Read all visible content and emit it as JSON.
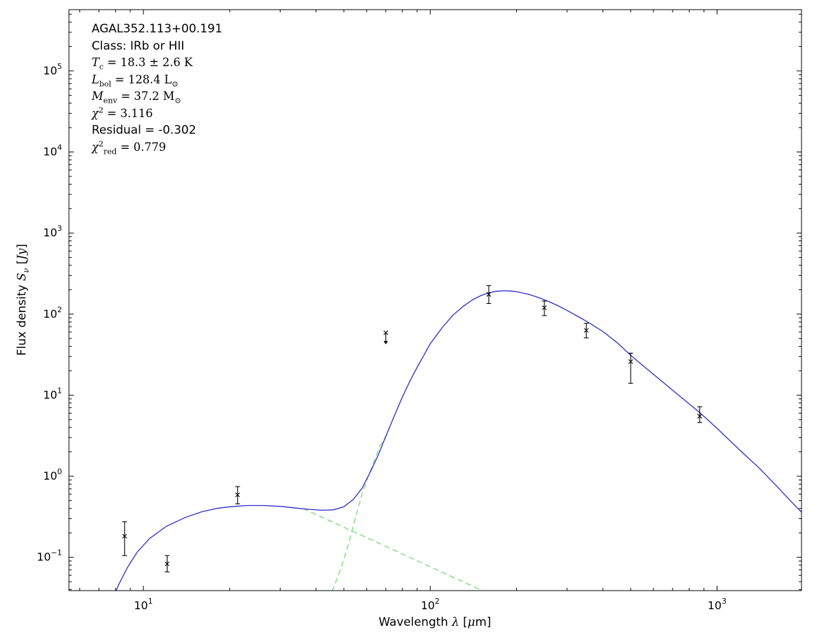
{
  "chart_data": {
    "type": "line",
    "title": "AGAL352.113+00.191",
    "xscale": "log",
    "yscale": "log",
    "xlim": [
      5.5,
      1970
    ],
    "ylim": [
      0.0388,
      570000
    ],
    "grid": false,
    "legend": "none",
    "xlabel": "Wavelength λ [μm]",
    "ylabel": "Flux density S_ν [Jy]",
    "xlabel_segments": [
      {
        "t": "Wavelength "
      },
      {
        "t": "λ",
        "it": true
      },
      {
        "t": " ["
      },
      {
        "t": "μ",
        "it": true
      },
      {
        "t": "m]"
      }
    ],
    "ylabel_segments": [
      {
        "t": "Flux density "
      },
      {
        "t": "S",
        "it": true
      },
      {
        "t": "ν",
        "sub": true,
        "it": true
      },
      {
        "t": " ["
      },
      {
        "t": "Jy",
        "it": true
      },
      {
        "t": "]"
      }
    ],
    "xticks": [
      {
        "v": 10,
        "base": "10",
        "exp": "1"
      },
      {
        "v": 100,
        "base": "10",
        "exp": "2"
      },
      {
        "v": 1000,
        "base": "10",
        "exp": "3"
      }
    ],
    "yticks": [
      {
        "v": 0.1,
        "base": "10",
        "exp": "−1"
      },
      {
        "v": 1,
        "base": "10",
        "exp": "0"
      },
      {
        "v": 10,
        "base": "10",
        "exp": "1"
      },
      {
        "v": 100,
        "base": "10",
        "exp": "2"
      },
      {
        "v": 1000,
        "base": "10",
        "exp": "3"
      },
      {
        "v": 10000,
        "base": "10",
        "exp": "4"
      },
      {
        "v": 100000,
        "base": "10",
        "exp": "5"
      }
    ],
    "annotations": [
      {
        "name": "source-name",
        "font": "sans",
        "segments": [
          {
            "t": "AGAL352.113+00.191"
          }
        ]
      },
      {
        "name": "class-line",
        "font": "sans",
        "segments": [
          {
            "t": "Class: IRb or HII"
          }
        ]
      },
      {
        "name": "temperature-line",
        "font": "serif",
        "segments": [
          {
            "t": "T",
            "it": true
          },
          {
            "t": "c",
            "sub": true
          },
          {
            "t": " = 18.3 ± 2.6 K"
          }
        ]
      },
      {
        "name": "luminosity-line",
        "font": "serif",
        "segments": [
          {
            "t": "L",
            "it": true
          },
          {
            "t": "bol",
            "sub": true
          },
          {
            "t": " = 128.4 L"
          },
          {
            "t": "⊙",
            "sub": true
          }
        ]
      },
      {
        "name": "mass-line",
        "font": "serif",
        "segments": [
          {
            "t": "M",
            "it": true
          },
          {
            "t": "env",
            "sub": true
          },
          {
            "t": " = 37.2 M"
          },
          {
            "t": "⊙",
            "sub": true
          }
        ]
      },
      {
        "name": "chi2-line",
        "font": "serif",
        "segments": [
          {
            "t": "χ",
            "it": true
          },
          {
            "t": "2",
            "sup": true
          },
          {
            "t": " = 3.116"
          }
        ]
      },
      {
        "name": "residual-line",
        "font": "sans",
        "segments": [
          {
            "t": "Residual = -0.302"
          }
        ]
      },
      {
        "name": "chi2red-line",
        "font": "serif",
        "segments": [
          {
            "t": "χ",
            "it": true
          },
          {
            "t": "2",
            "sup": true
          },
          {
            "t": "red",
            "sub": true
          },
          {
            "t": " = 0.779"
          }
        ]
      }
    ],
    "series": [
      {
        "name": "cold-component-curve",
        "color": "#74d874",
        "dash": "8,5",
        "points": [
          [
            44,
            0.03
          ],
          [
            46,
            0.042
          ],
          [
            49,
            0.075
          ],
          [
            52,
            0.15
          ],
          [
            55,
            0.32
          ],
          [
            58,
            0.62
          ],
          [
            61,
            1.02
          ],
          [
            64,
            1.6
          ],
          [
            67,
            2.4
          ],
          [
            70,
            3.1
          ],
          [
            72,
            3.9
          ]
        ]
      },
      {
        "name": "warm-component-curve",
        "color": "#74d874",
        "dash": "8,5",
        "points": [
          [
            36,
            0.4
          ],
          [
            44,
            0.289
          ],
          [
            52,
            0.22
          ],
          [
            62,
            0.166
          ],
          [
            75,
            0.122
          ],
          [
            90,
            0.0906
          ],
          [
            110,
            0.0655
          ],
          [
            130,
            0.05
          ],
          [
            150,
            0.0397
          ],
          [
            162,
            0.035
          ]
        ]
      },
      {
        "name": "model-total-curve",
        "color": "#2a2ad0",
        "dash": "",
        "points": [
          [
            7.8,
            0.03
          ],
          [
            8.2,
            0.046
          ],
          [
            8.8,
            0.075
          ],
          [
            9.5,
            0.115
          ],
          [
            10.5,
            0.17
          ],
          [
            12,
            0.24
          ],
          [
            14,
            0.31
          ],
          [
            16,
            0.365
          ],
          [
            18,
            0.4
          ],
          [
            20,
            0.42
          ],
          [
            23,
            0.435
          ],
          [
            26,
            0.435
          ],
          [
            30,
            0.425
          ],
          [
            34,
            0.405
          ],
          [
            38,
            0.39
          ],
          [
            42,
            0.38
          ],
          [
            46,
            0.385
          ],
          [
            50,
            0.42
          ],
          [
            54,
            0.52
          ],
          [
            58,
            0.72
          ],
          [
            62,
            1.15
          ],
          [
            66,
            1.85
          ],
          [
            70,
            3.1
          ],
          [
            75,
            5.6
          ],
          [
            80,
            9.5
          ],
          [
            85,
            15
          ],
          [
            90,
            22
          ],
          [
            100,
            43
          ],
          [
            110,
            68
          ],
          [
            120,
            97
          ],
          [
            130,
            124
          ],
          [
            140,
            149
          ],
          [
            150,
            169
          ],
          [
            160,
            183
          ],
          [
            170,
            191
          ],
          [
            180,
            194
          ],
          [
            190,
            193
          ],
          [
            200,
            189
          ],
          [
            220,
            176
          ],
          [
            240,
            159
          ],
          [
            260,
            142
          ],
          [
            280,
            126
          ],
          [
            300,
            111
          ],
          [
            330,
            92
          ],
          [
            360,
            77
          ],
          [
            400,
            61
          ],
          [
            450,
            44
          ],
          [
            500,
            31
          ],
          [
            560,
            22.2
          ],
          [
            630,
            15.7
          ],
          [
            700,
            11.5
          ],
          [
            800,
            7.8
          ],
          [
            870,
            6.1
          ],
          [
            1000,
            3.9
          ],
          [
            1200,
            2.1
          ],
          [
            1400,
            1.27
          ],
          [
            1600,
            0.78
          ],
          [
            1800,
            0.5
          ],
          [
            1970,
            0.36
          ]
        ]
      }
    ],
    "points": [
      {
        "x": 8.6,
        "y": 0.182,
        "err": [
          0.105,
          0.275
        ]
      },
      {
        "x": 12.1,
        "y": 0.083,
        "err": [
          0.066,
          0.105
        ]
      },
      {
        "x": 21.3,
        "y": 0.59,
        "err": [
          0.457,
          0.745
        ]
      },
      {
        "x": 160,
        "y": 175,
        "err": [
          135,
          225
        ]
      },
      {
        "x": 250,
        "y": 120,
        "err": [
          96,
          145
        ]
      },
      {
        "x": 350,
        "y": 63,
        "err": [
          51,
          77
        ]
      },
      {
        "x": 500,
        "y": 26,
        "err": [
          14,
          33
        ]
      },
      {
        "x": 870,
        "y": 5.5,
        "err": [
          4.6,
          7.2
        ]
      }
    ],
    "upper_limits": [
      {
        "x": 70,
        "y": 59
      }
    ],
    "marker_color": "#000000",
    "frame_color": "#000000"
  }
}
